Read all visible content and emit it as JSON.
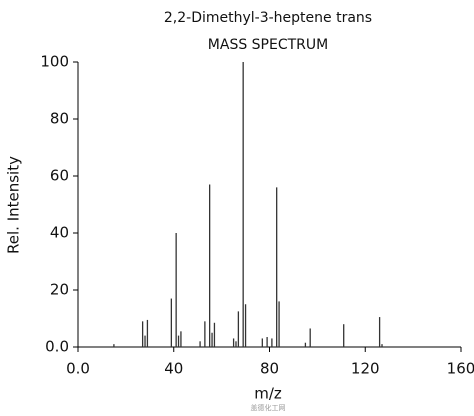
{
  "chart_data": {
    "type": "stem",
    "title": "2,2-Dimethyl-3-heptene trans",
    "subtitle": "MASS SPECTRUM",
    "x_label": "m/z",
    "y_label": "Rel. Intensity",
    "annotation": "盖德化工网",
    "x": [
      15,
      27,
      28,
      29,
      39,
      41,
      42,
      43,
      51,
      53,
      55,
      56,
      57,
      65,
      66,
      67,
      69,
      70,
      77,
      79,
      81,
      83,
      84,
      95,
      97,
      111,
      126,
      127
    ],
    "values": [
      1,
      9,
      4,
      9.5,
      17,
      40,
      4,
      5.5,
      2,
      9,
      57,
      5,
      8.5,
      3,
      2,
      12.5,
      100,
      15,
      3,
      3.5,
      3,
      56,
      16,
      1.5,
      6.5,
      8,
      10.5,
      1
    ],
    "color": "#333333",
    "xlim": [
      0,
      160
    ],
    "xticks": [
      {
        "value": 0,
        "label": "0.0"
      },
      40,
      80,
      120,
      160
    ],
    "ylim": [
      0,
      100
    ],
    "yticks": [
      {
        "value": 0,
        "label": "0.0"
      },
      20,
      40,
      60,
      80,
      100
    ]
  }
}
